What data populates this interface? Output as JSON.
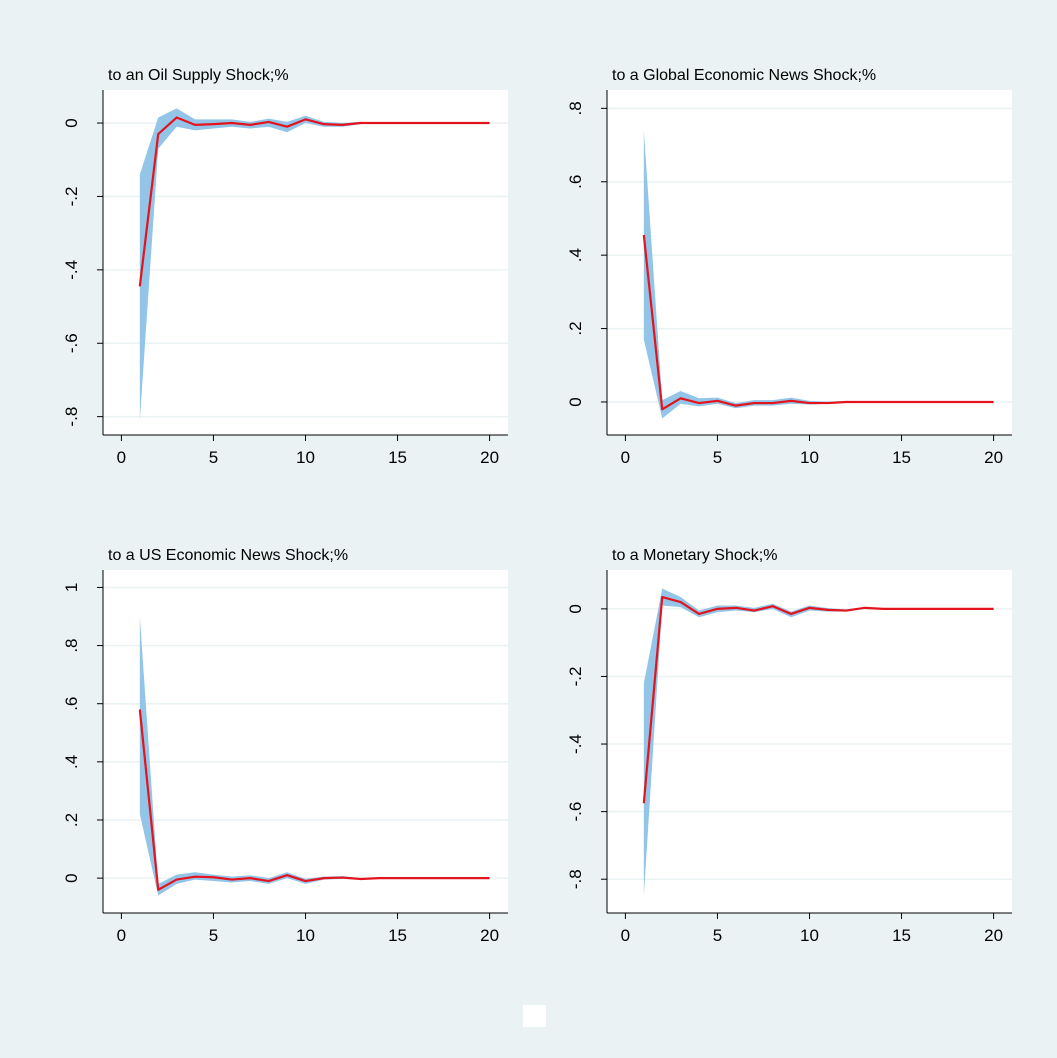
{
  "chart_data": [
    {
      "type": "line",
      "title": "to an Oil Supply Shock;%",
      "x": [
        1,
        2,
        3,
        4,
        5,
        6,
        7,
        8,
        9,
        10,
        11,
        12,
        13,
        14,
        15,
        16,
        17,
        18,
        19,
        20
      ],
      "series": [
        {
          "color": "#e3141e",
          "values": [
            -0.445,
            -0.03,
            0.015,
            -0.005,
            -0.003,
            0,
            -0.005,
            0.003,
            -0.01,
            0.01,
            -0.003,
            -0.005,
            0,
            0,
            0,
            0,
            0,
            0,
            0,
            0
          ]
        }
      ],
      "band": {
        "color": "#92c5e8",
        "lower": [
          -0.81,
          -0.07,
          -0.01,
          -0.02,
          -0.015,
          -0.01,
          -0.015,
          -0.01,
          -0.025,
          0,
          -0.01,
          -0.01,
          -0.003,
          0,
          0,
          0,
          0,
          0,
          0,
          0
        ],
        "upper": [
          -0.14,
          0.015,
          0.04,
          0.01,
          0.01,
          0.01,
          0.003,
          0.012,
          0.003,
          0.02,
          0.003,
          0,
          0.003,
          0,
          0,
          0,
          0,
          0,
          0,
          0
        ]
      },
      "xlim": [
        -1,
        21
      ],
      "xticks": [
        0,
        5,
        10,
        15,
        20
      ],
      "ylim": [
        -0.85,
        0.09
      ],
      "yticks": [
        {
          "value": -0.8,
          "label": "-.8"
        },
        {
          "value": -0.6,
          "label": "-.6"
        },
        {
          "value": -0.4,
          "label": "-.4"
        },
        {
          "value": -0.2,
          "label": "-.2"
        },
        0
      ],
      "grid": true
    },
    {
      "type": "line",
      "title": "to a Global Economic News Shock;%",
      "x": [
        1,
        2,
        3,
        4,
        5,
        6,
        7,
        8,
        9,
        10,
        11,
        12,
        13,
        14,
        15,
        16,
        17,
        18,
        19,
        20
      ],
      "series": [
        {
          "color": "#e3141e",
          "values": [
            0.455,
            -0.02,
            0.01,
            -0.003,
            0.003,
            -0.01,
            -0.003,
            -0.003,
            0.003,
            -0.003,
            -0.003,
            0,
            0,
            0,
            0,
            0,
            0,
            0,
            0,
            0
          ]
        }
      ],
      "band": {
        "color": "#92c5e8",
        "lower": [
          0.17,
          -0.045,
          -0.005,
          -0.012,
          -0.005,
          -0.017,
          -0.01,
          -0.01,
          -0.005,
          -0.007,
          -0.005,
          -0.002,
          0,
          0,
          0,
          0,
          0,
          0,
          0,
          0
        ],
        "upper": [
          0.74,
          0.005,
          0.03,
          0.01,
          0.012,
          -0.003,
          0.005,
          0.005,
          0.012,
          0.003,
          0.001,
          0.003,
          0.002,
          0,
          0,
          0,
          0,
          0,
          0,
          0
        ]
      },
      "xlim": [
        -1,
        21
      ],
      "xticks": [
        0,
        5,
        10,
        15,
        20
      ],
      "ylim": [
        -0.09,
        0.85
      ],
      "yticks": [
        0,
        {
          "value": 0.2,
          "label": ".2"
        },
        {
          "value": 0.4,
          "label": ".4"
        },
        {
          "value": 0.6,
          "label": ".6"
        },
        {
          "value": 0.8,
          "label": ".8"
        }
      ],
      "grid": true
    },
    {
      "type": "line",
      "title": "to a US Economic News Shock;%",
      "x": [
        1,
        2,
        3,
        4,
        5,
        6,
        7,
        8,
        9,
        10,
        11,
        12,
        13,
        14,
        15,
        16,
        17,
        18,
        19,
        20
      ],
      "series": [
        {
          "color": "#e3141e",
          "values": [
            0.58,
            -0.04,
            -0.005,
            0.005,
            0.003,
            -0.005,
            0,
            -0.01,
            0.01,
            -0.01,
            0,
            0.002,
            -0.003,
            0,
            0,
            0,
            0,
            0,
            0,
            0
          ]
        }
      ],
      "band": {
        "color": "#92c5e8",
        "lower": [
          0.22,
          -0.06,
          -0.02,
          -0.005,
          -0.01,
          -0.015,
          -0.01,
          -0.02,
          0,
          -0.02,
          -0.005,
          -0.003,
          -0.005,
          0,
          0,
          0,
          0,
          0,
          0,
          0
        ],
        "upper": [
          0.9,
          -0.02,
          0.012,
          0.02,
          0.012,
          0.005,
          0.01,
          0,
          0.02,
          -0.002,
          0.005,
          0.007,
          0,
          0,
          0,
          0,
          0,
          0,
          0,
          0
        ]
      },
      "xlim": [
        -1,
        21
      ],
      "xticks": [
        0,
        5,
        10,
        15,
        20
      ],
      "ylim": [
        -0.12,
        1.06
      ],
      "yticks": [
        0,
        {
          "value": 0.2,
          "label": ".2"
        },
        {
          "value": 0.4,
          "label": ".4"
        },
        {
          "value": 0.6,
          "label": ".6"
        },
        {
          "value": 0.8,
          "label": ".8"
        },
        1
      ],
      "grid": true
    },
    {
      "type": "line",
      "title": "to a Monetary Shock;%",
      "x": [
        1,
        2,
        3,
        4,
        5,
        6,
        7,
        8,
        9,
        10,
        11,
        12,
        13,
        14,
        15,
        16,
        17,
        18,
        19,
        20
      ],
      "series": [
        {
          "color": "#e3141e",
          "values": [
            -0.575,
            0.035,
            0.02,
            -0.015,
            0,
            0.003,
            -0.005,
            0.008,
            -0.015,
            0.003,
            -0.003,
            -0.005,
            0.003,
            0,
            0,
            0,
            0,
            0,
            0,
            0
          ]
        }
      ],
      "band": {
        "color": "#92c5e8",
        "lower": [
          -0.85,
          0.01,
          0.005,
          -0.025,
          -0.01,
          -0.005,
          -0.01,
          0,
          -0.025,
          -0.005,
          -0.008,
          -0.008,
          0,
          0,
          0,
          0,
          0,
          0,
          0,
          0
        ],
        "upper": [
          -0.22,
          0.06,
          0.035,
          -0.005,
          0.01,
          0.01,
          0.003,
          0.015,
          -0.008,
          0.01,
          0.002,
          -0.002,
          0.005,
          0,
          0,
          0,
          0,
          0,
          0,
          0
        ]
      },
      "xlim": [
        -1,
        21
      ],
      "xticks": [
        0,
        5,
        10,
        15,
        20
      ],
      "ylim": [
        -0.9,
        0.115
      ],
      "yticks": [
        {
          "value": -0.8,
          "label": "-.8"
        },
        {
          "value": -0.6,
          "label": "-.6"
        },
        {
          "value": -0.4,
          "label": "-.4"
        },
        {
          "value": -0.2,
          "label": "-.2"
        },
        0
      ],
      "grid": true
    }
  ]
}
